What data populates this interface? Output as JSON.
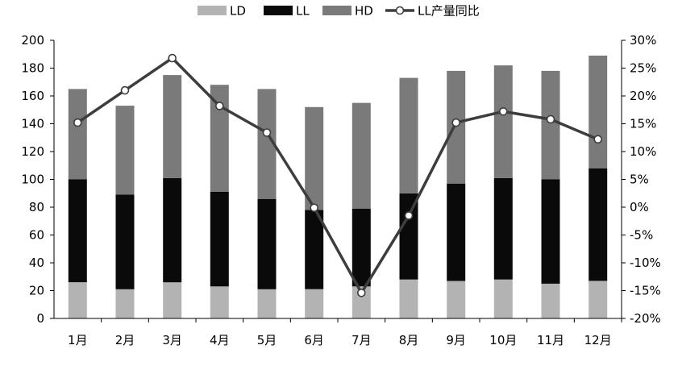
{
  "chart_data": {
    "type": "bar",
    "stacked": true,
    "title": "",
    "xlabel": "",
    "ylabel": "",
    "y2label": "",
    "categories": [
      "1月",
      "2月",
      "3月",
      "4月",
      "5月",
      "6月",
      "7月",
      "8月",
      "9月",
      "10月",
      "11月",
      "12月"
    ],
    "series": [
      {
        "name": "LD",
        "type": "bar",
        "axis": "left",
        "color": "#b3b3b3",
        "values": [
          26,
          21,
          26,
          23,
          21,
          21,
          23,
          28,
          27,
          28,
          25,
          27
        ]
      },
      {
        "name": "LL",
        "type": "bar",
        "axis": "left",
        "color": "#0a0a0a",
        "values": [
          74,
          68,
          75,
          68,
          65,
          57,
          56,
          62,
          70,
          73,
          75,
          81
        ]
      },
      {
        "name": "HD",
        "type": "bar",
        "axis": "left",
        "color": "#7a7a7a",
        "values": [
          65,
          64,
          74,
          77,
          79,
          74,
          76,
          83,
          81,
          81,
          78,
          81
        ]
      },
      {
        "name": "LL产量同比",
        "type": "line",
        "axis": "right",
        "color": "#3d3d3d",
        "values": [
          15.2,
          21.0,
          26.8,
          18.2,
          13.4,
          -0.1,
          -15.4,
          -1.5,
          15.2,
          17.2,
          15.8,
          12.2
        ]
      }
    ],
    "ylim": [
      0,
      200
    ],
    "y_ticks": [
      0,
      20,
      40,
      60,
      80,
      100,
      120,
      140,
      160,
      180,
      200
    ],
    "y2lim": [
      -20,
      30
    ],
    "y2_ticks": [
      "-20%",
      "-15%",
      "-10%",
      "-5%",
      "0%",
      "5%",
      "10%",
      "15%",
      "20%",
      "25%",
      "30%"
    ],
    "grid": false,
    "legend_position": "top-center"
  }
}
